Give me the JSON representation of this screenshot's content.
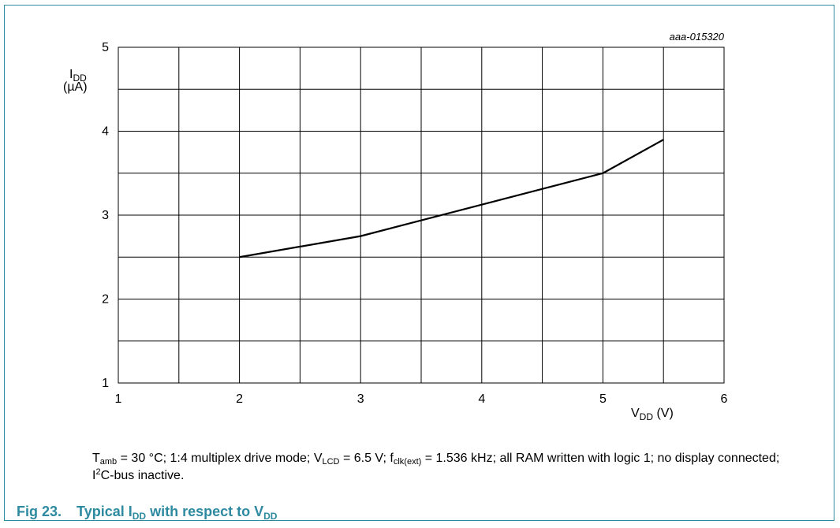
{
  "figure": {
    "number": "Fig 23.",
    "title_parts": [
      "Typical I",
      "DD",
      " with respect to V",
      "DD"
    ]
  },
  "note_parts": [
    {
      "t": "T"
    },
    {
      "sub": "amb"
    },
    {
      "t": " = 30 °C; 1:4 multiplex drive mode; V"
    },
    {
      "sub": "LCD"
    },
    {
      "t": " = 6.5 V; f"
    },
    {
      "sub": "clk(ext)"
    },
    {
      "t": " = 1.536 kHz; all RAM written with logic 1; no display connected; I"
    },
    {
      "sup": "2"
    },
    {
      "t": "C-bus inactive."
    }
  ],
  "colors": {
    "accent": "#2d8aa0",
    "line": "#000000",
    "grid": "#000000"
  },
  "chart_data": {
    "type": "line",
    "id_label": "aaa-015320",
    "ylabel": {
      "main": "I",
      "sub": "DD",
      "unit": "(µA)"
    },
    "xlabel": {
      "main": "V",
      "sub": "DD",
      "unit": " (V)"
    },
    "xlim": [
      1,
      6
    ],
    "ylim": [
      1,
      5
    ],
    "xticks": [
      1,
      2,
      3,
      4,
      5,
      6
    ],
    "yticks": [
      1,
      2,
      3,
      4,
      5
    ],
    "x_minor": 0.5,
    "y_minor": 0.5,
    "grid": true,
    "series": [
      {
        "x": [
          2,
          3,
          5,
          5.5
        ],
        "y": [
          2.5,
          2.75,
          3.5,
          3.9
        ]
      }
    ]
  }
}
